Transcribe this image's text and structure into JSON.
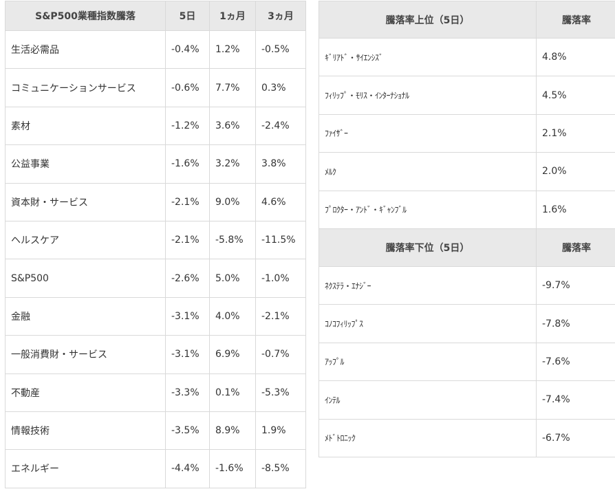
{
  "sector": {
    "headers": [
      "S&P500業種指数騰落",
      "5日",
      "1ヵ月",
      "3ヵ月"
    ],
    "rows": [
      {
        "name": "生活必需品",
        "d5": "-0.4%",
        "m1": "1.2%",
        "m3": "-0.5%"
      },
      {
        "name": "コミュニケーションサービス",
        "d5": "-0.6%",
        "m1": "7.7%",
        "m3": "0.3%"
      },
      {
        "name": "素材",
        "d5": "-1.2%",
        "m1": "3.6%",
        "m3": "-2.4%"
      },
      {
        "name": "公益事業",
        "d5": "-1.6%",
        "m1": "3.2%",
        "m3": "3.8%"
      },
      {
        "name": "資本財・サービス",
        "d5": "-2.1%",
        "m1": "9.0%",
        "m3": "4.6%"
      },
      {
        "name": "ヘルスケア",
        "d5": "-2.1%",
        "m1": "-5.8%",
        "m3": "-11.5%"
      },
      {
        "name": "S&P500",
        "d5": "-2.6%",
        "m1": "5.0%",
        "m3": "-1.0%"
      },
      {
        "name": "金融",
        "d5": "-3.1%",
        "m1": "4.0%",
        "m3": "-2.1%"
      },
      {
        "name": "一般消費財・サービス",
        "d5": "-3.1%",
        "m1": "6.9%",
        "m3": "-0.7%"
      },
      {
        "name": "不動産",
        "d5": "-3.3%",
        "m1": "0.1%",
        "m3": "-5.3%"
      },
      {
        "name": "情報技術",
        "d5": "-3.5%",
        "m1": "8.9%",
        "m3": "1.9%"
      },
      {
        "name": "エネルギー",
        "d5": "-4.4%",
        "m1": "-1.6%",
        "m3": "-8.5%"
      }
    ]
  },
  "gainers": {
    "headers": [
      "騰落率上位（5日）",
      "騰落率"
    ],
    "rows": [
      {
        "name": "ｷﾞﾘｱﾄﾞ・ｻｲｴﾝｼｽﾞ",
        "value": "4.8%"
      },
      {
        "name": "ﾌｨﾘｯﾌﾟ・ﾓﾘｽ・ｲﾝﾀｰﾅｼｮﾅﾙ",
        "value": "4.5%"
      },
      {
        "name": "ﾌｧｲｻﾞｰ",
        "value": "2.1%"
      },
      {
        "name": "ﾒﾙｸ",
        "value": "2.0%"
      },
      {
        "name": "ﾌﾟﾛｸﾀｰ・ｱﾝﾄﾞ・ｷﾞｬﾝﾌﾞﾙ",
        "value": "1.6%"
      }
    ]
  },
  "losers": {
    "headers": [
      "騰落率下位（5日）",
      "騰落率"
    ],
    "rows": [
      {
        "name": "ﾈｸｽﾃﾗ・ｴﾅｼﾞｰ",
        "value": "-9.7%"
      },
      {
        "name": "ｺﾉｺﾌｨﾘｯﾌﾟｽ",
        "value": "-7.8%"
      },
      {
        "name": "ｱｯﾌﾟﾙ",
        "value": "-7.6%"
      },
      {
        "name": "ｲﾝﾃﾙ",
        "value": "-7.4%"
      },
      {
        "name": "ﾒﾄﾞﾄﾛﾆｯｸ",
        "value": "-6.7%"
      }
    ]
  }
}
